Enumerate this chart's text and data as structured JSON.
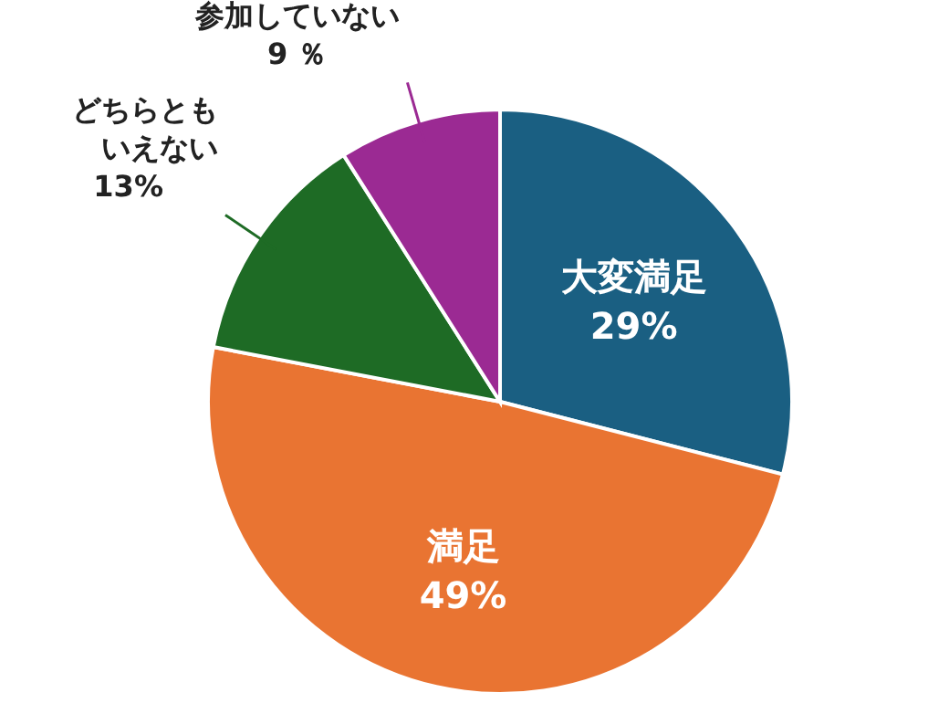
{
  "chart_data": {
    "type": "pie",
    "categories": [
      "大変満足",
      "満足",
      "どちらともいえない",
      "参加していない"
    ],
    "values": [
      29,
      49,
      13,
      9
    ],
    "value_labels": [
      "29%",
      "49%",
      "13%",
      "9 ％"
    ],
    "colors": [
      "#1a5f82",
      "#e97432",
      "#1e6b25",
      "#9b2a93"
    ],
    "legend": false
  }
}
